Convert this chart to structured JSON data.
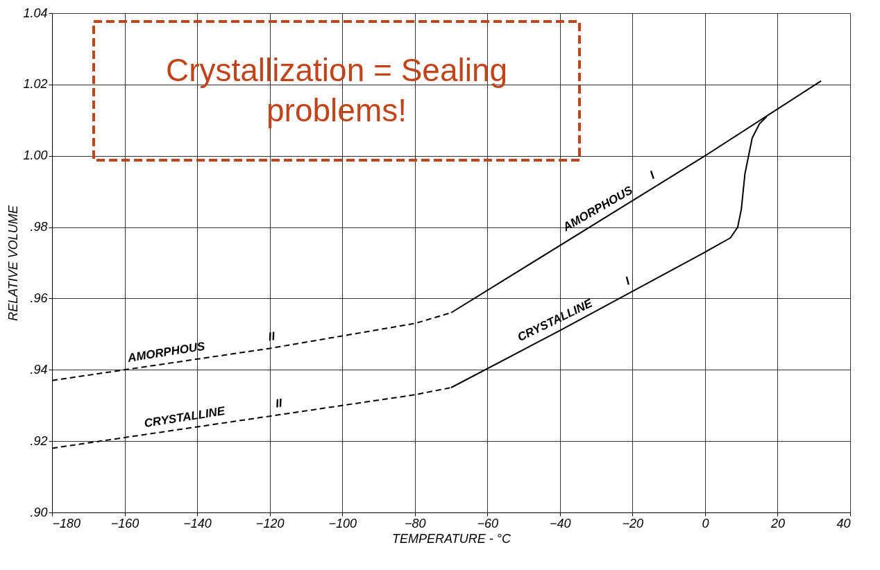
{
  "chart_data": {
    "type": "line",
    "xlabel": "TEMPERATURE - °C",
    "ylabel": "RELATIVE VOLUME",
    "xlim": [
      -180,
      40
    ],
    "xticks": [
      -180,
      -160,
      -140,
      -120,
      -100,
      -80,
      -60,
      -40,
      -20,
      0,
      20,
      40
    ],
    "ylim": [
      0.9,
      1.04
    ],
    "yticks": [
      {
        "value": 0.9,
        "label": ".90"
      },
      {
        "value": 0.92,
        "label": ".92"
      },
      {
        "value": 0.94,
        "label": ".94"
      },
      {
        "value": 0.96,
        "label": ".96"
      },
      {
        "value": 0.98,
        "label": ".98"
      },
      {
        "value": 1.0,
        "label": "1.00"
      },
      {
        "value": 1.02,
        "label": "1.02"
      },
      {
        "value": 1.04,
        "label": "1.04"
      }
    ],
    "grid": true,
    "marker": "none",
    "series": [
      {
        "name": "AMORPHOUS I",
        "color": "#000000",
        "line_style": "solid",
        "x": [
          -70,
          0,
          32
        ],
        "values": [
          0.956,
          1.0,
          1.021
        ]
      },
      {
        "name": "AMORPHOUS II",
        "color": "#000000",
        "line_style": "dashed",
        "x": [
          -180,
          -160,
          -120,
          -80,
          -70
        ],
        "values": [
          0.937,
          0.94,
          0.946,
          0.953,
          0.956
        ]
      },
      {
        "name": "CRYSTALLINE I",
        "color": "#000000",
        "line_style": "solid",
        "x": [
          -70,
          -40,
          0,
          7,
          9,
          10,
          10.5,
          11,
          12,
          13,
          15,
          17
        ],
        "values": [
          0.935,
          0.951,
          0.973,
          0.977,
          0.98,
          0.985,
          0.99,
          0.995,
          1.0,
          1.005,
          1.009,
          1.011
        ]
      },
      {
        "name": "CRYSTALLINE II",
        "color": "#000000",
        "line_style": "dashed",
        "x": [
          -180,
          -160,
          -120,
          -80,
          -70
        ],
        "values": [
          0.918,
          0.921,
          0.927,
          0.933,
          0.935
        ]
      }
    ],
    "annotations": [
      "Crystallization = Sealing problems!"
    ]
  }
}
